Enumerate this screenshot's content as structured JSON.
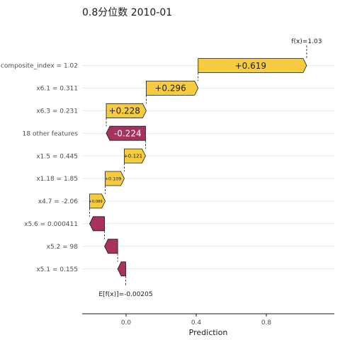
{
  "chart_data": {
    "type": "waterfall",
    "title": "0.8分位数 2010-01",
    "xlabel": "Prediction",
    "xticks": [
      0.0,
      0.4,
      0.8
    ],
    "xtick_labels": [
      "0.0",
      "0.4",
      "0.8"
    ],
    "xlim": [
      -0.255,
      1.2
    ],
    "base_value": -0.00205,
    "base_label": "E[f(x)]=-0.00205",
    "prediction": 1.03,
    "prediction_label": "f(x)=1.03",
    "features": [
      {
        "label": "composite_index = 1.02",
        "value": 0.619,
        "value_label": "+0.619",
        "start": 0.411,
        "end": 1.03
      },
      {
        "label": "x6.1 = 0.311",
        "value": 0.296,
        "value_label": "+0.296",
        "start": 0.115,
        "end": 0.411
      },
      {
        "label": "x6.3 = 0.231",
        "value": 0.228,
        "value_label": "+0.228",
        "start": -0.113,
        "end": 0.115
      },
      {
        "label": "18 other features",
        "value": -0.224,
        "value_label": "-0.224",
        "start": 0.111,
        "end": -0.113
      },
      {
        "label": "x1.5 = 0.445",
        "value": 0.121,
        "value_label": "+0.121",
        "start": -0.01,
        "end": 0.111
      },
      {
        "label": "x1.18 = 1.85",
        "value": 0.109,
        "value_label": "+0.109",
        "start": -0.119,
        "end": -0.01
      },
      {
        "label": "x4.7 = -2.06",
        "value": 0.089,
        "value_label": "+0.089",
        "start": -0.208,
        "end": -0.119
      },
      {
        "label": "x5.6 = 0.000411",
        "value": -0.085,
        "value_label": "",
        "start": -0.123,
        "end": -0.208
      },
      {
        "label": "x5.2 = 98",
        "value": -0.075,
        "value_label": "",
        "start": -0.048,
        "end": -0.123
      },
      {
        "label": "x5.1 = 0.155",
        "value": -0.046,
        "value_label": "",
        "start": -0.002,
        "end": -0.048
      }
    ],
    "colors": {
      "positive": "#F6CC3E",
      "negative": "#A8325E",
      "outline": "#1a1a1a",
      "grid": "#e6e6e6"
    }
  }
}
